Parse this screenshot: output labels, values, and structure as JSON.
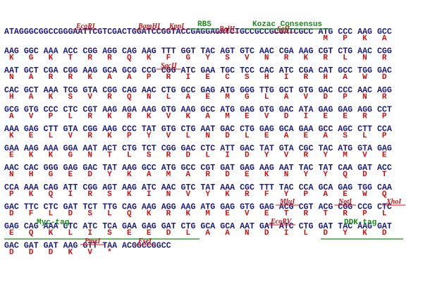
{
  "rows": [
    {
      "lead": "ATAGGGCGGCCGGGAATTCGTCGACTGGATCCGGTACCGAGGAGATCTGCCGCCGCGATCGCC",
      "codons": [
        "ATG",
        "CCC",
        "AAG",
        "GCC"
      ],
      "aa": [
        "M",
        "P",
        "K",
        "A"
      ],
      "enzymes": [
        "EcoRI",
        "BamHI",
        "KpnI",
        "BglII",
        "SgfI"
      ],
      "features": [
        "RBS",
        "Kozac Consensus"
      ]
    },
    {
      "codons": [
        "AAG",
        "GGC",
        "AAA",
        "ACC",
        "CGG",
        "AGG",
        "CAG",
        "AAG",
        "TTT",
        "GGT",
        "TAC",
        "AGT",
        "GTC",
        "AAC",
        "CGA",
        "AAG",
        "CGT",
        "CTG",
        "AAC",
        "CGG"
      ],
      "aa": [
        "K",
        "G",
        "K",
        "T",
        "R",
        "R",
        "Q",
        "K",
        "F",
        "G",
        "Y",
        "S",
        "V",
        "N",
        "R",
        "K",
        "R",
        "L",
        "N",
        "R"
      ]
    },
    {
      "codons": [
        "AAT",
        "GCT",
        "CGA",
        "CGG",
        "AAG",
        "GCA",
        "GCG",
        "CCG",
        "CGG",
        "ATC",
        "GAA",
        "TGC",
        "TCC",
        "CAC",
        "ATC",
        "CGA",
        "CAT",
        "GCC",
        "TGG",
        "GAC"
      ],
      "aa": [
        "N",
        "A",
        "R",
        "R",
        "K",
        "A",
        "A",
        "P",
        "R",
        "I",
        "E",
        "C",
        "S",
        "H",
        "I",
        "R",
        "H",
        "A",
        "W",
        "D"
      ],
      "enzymes": [
        "SacII"
      ]
    },
    {
      "codons": [
        "CAC",
        "GCT",
        "AAA",
        "TCG",
        "GTA",
        "CGG",
        "CAG",
        "AAC",
        "CTG",
        "GCC",
        "GAG",
        "ATG",
        "GGG",
        "TTG",
        "GCT",
        "GTG",
        "GAC",
        "CCC",
        "AAC",
        "AGG"
      ],
      "aa": [
        "H",
        "A",
        "K",
        "S",
        "V",
        "R",
        "Q",
        "N",
        "L",
        "A",
        "E",
        "M",
        "G",
        "L",
        "A",
        "V",
        "D",
        "P",
        "N",
        "R"
      ]
    },
    {
      "codons": [
        "GCG",
        "GTG",
        "CCC",
        "CTC",
        "CGT",
        "AAG",
        "AGA",
        "AAG",
        "GTG",
        "AAG",
        "GCC",
        "ATG",
        "GAG",
        "GTG",
        "GAC",
        "ATA",
        "GAG",
        "GAG",
        "AGG",
        "CCT"
      ],
      "aa": [
        "A",
        "V",
        "P",
        "L",
        "R",
        "K",
        "R",
        "K",
        "V",
        "K",
        "A",
        "M",
        "E",
        "V",
        "D",
        "I",
        "E",
        "E",
        "R",
        "P"
      ]
    },
    {
      "codons": [
        "AAA",
        "GAG",
        "CTT",
        "GTA",
        "CGG",
        "AAG",
        "CCC",
        "TAT",
        "GTG",
        "CTG",
        "AAT",
        "GAC",
        "CTG",
        "GAG",
        "GCA",
        "GAA",
        "GCC",
        "AGC",
        "CTT",
        "CCA"
      ],
      "aa": [
        "K",
        "E",
        "L",
        "V",
        "R",
        "K",
        "P",
        "Y",
        "V",
        "L",
        "N",
        "D",
        "L",
        "E",
        "A",
        "E",
        "A",
        "S",
        "L",
        "P"
      ]
    },
    {
      "codons": [
        "GAA",
        "AAG",
        "AAA",
        "GGA",
        "AAT",
        "ACT",
        "CTG",
        "TCT",
        "CGG",
        "GAC",
        "CTC",
        "ATT",
        "GAC",
        "TAT",
        "GTA",
        "CGC",
        "TAC",
        "ATG",
        "GTA",
        "GAG"
      ],
      "aa": [
        "E",
        "K",
        "K",
        "G",
        "N",
        "T",
        "L",
        "S",
        "R",
        "D",
        "L",
        "I",
        "D",
        "Y",
        "V",
        "R",
        "Y",
        "M",
        "V",
        "E"
      ]
    },
    {
      "codons": [
        "AAC",
        "CAC",
        "GGG",
        "GAG",
        "GAC",
        "TAT",
        "AAG",
        "GCC",
        "ATG",
        "GCC",
        "CGT",
        "GAT",
        "GAG",
        "AAG",
        "AAT",
        "TAC",
        "TAT",
        "CAA",
        "GAT",
        "ACC"
      ],
      "aa": [
        "N",
        "H",
        "G",
        "E",
        "D",
        "Y",
        "K",
        "A",
        "M",
        "A",
        "R",
        "D",
        "E",
        "K",
        "N",
        "Y",
        "Y",
        "Q",
        "D",
        "T"
      ]
    },
    {
      "codons": [
        "CCA",
        "AAA",
        "CAG",
        "ATT",
        "CGG",
        "AGT",
        "AAG",
        "ATC",
        "AAC",
        "GTC",
        "TAT",
        "AAA",
        "CGC",
        "TTT",
        "TAC",
        "CCA",
        "GCA",
        "GAG",
        "TGG",
        "CAA"
      ],
      "aa": [
        "P",
        "K",
        "Q",
        "I",
        "R",
        "S",
        "K",
        "I",
        "N",
        "V",
        "Y",
        "K",
        "R",
        "F",
        "Y",
        "P",
        "A",
        "E",
        "W",
        "Q"
      ]
    },
    {
      "codons": [
        "GAC",
        "TTC",
        "CTC",
        "GAT",
        "TCT",
        "TTG",
        "CAG",
        "AAG",
        "AGG",
        "AAG",
        "ATG",
        "GAG",
        "GTG",
        "GAG",
        "ACG",
        "CGT",
        "ACG",
        "CGG",
        "CCG",
        "CTC"
      ],
      "aa": [
        "D",
        "F",
        "L",
        "D",
        "S",
        "L",
        "Q",
        "K",
        "R",
        "K",
        "M",
        "E",
        "V",
        "E",
        "T",
        "R",
        "T",
        "R",
        "P",
        "L"
      ],
      "enzymes": [
        "MluI",
        "NotI",
        "XhoI"
      ]
    },
    {
      "codons": [
        "GAG",
        "CAG",
        "AAA",
        "CTC",
        "ATC",
        "TCA",
        "GAA",
        "GAG",
        "GAT",
        "CTG",
        "GCA",
        "GCA",
        "AAT",
        "GAT",
        "ATC",
        "CTG",
        "GAT",
        "TAC",
        "AAG",
        "GAT"
      ],
      "aa": [
        "E",
        "Q",
        "K",
        "L",
        "I",
        "S",
        "E",
        "E",
        "D",
        "L",
        "A",
        "A",
        "N",
        "D",
        "I",
        "L",
        "D",
        "Y",
        "K",
        "D"
      ],
      "enzymes": [
        "EcoRV"
      ],
      "features": [
        "Myc-tag",
        "DDK-tag"
      ]
    },
    {
      "codons": [
        "GAC",
        "GAT",
        "GAT",
        "AAG",
        "GTT",
        "TAA"
      ],
      "tail": "ACGGCCGGCC",
      "aa": [
        "D",
        "D",
        "D",
        "K",
        "V",
        "*"
      ],
      "enzymes": [
        "PmeI",
        "FseI"
      ]
    }
  ]
}
